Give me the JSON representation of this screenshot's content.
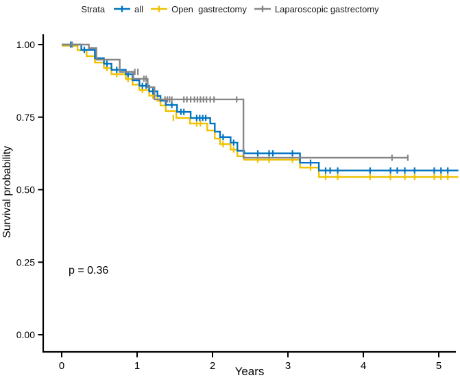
{
  "legend": {
    "title": "Strata",
    "items": [
      {
        "label": "all",
        "color": "#0073C2"
      },
      {
        "label": "Open  gastrectomy",
        "color": "#EFC000"
      },
      {
        "label": "Laparoscopic gastrectomy",
        "color": "#868686"
      }
    ]
  },
  "chart_data": {
    "type": "line",
    "subtype": "kaplan-meier-step",
    "title": "",
    "xlabel": "Years",
    "ylabel": "Survival probability",
    "annotation": "p = 0.36",
    "xlim": [
      0,
      5.3
    ],
    "ylim": [
      0,
      1
    ],
    "grid": false,
    "legend_position": "top",
    "axis_color": "#000000",
    "x_ticks": [
      {
        "value": 0,
        "label": "0"
      },
      {
        "value": 1,
        "label": "1"
      },
      {
        "value": 2,
        "label": "2"
      },
      {
        "value": 3,
        "label": "3"
      },
      {
        "value": 4,
        "label": "4"
      },
      {
        "value": 5,
        "label": "5"
      }
    ],
    "y_ticks": [
      {
        "value": 0.0,
        "label": "0.00"
      },
      {
        "value": 0.25,
        "label": "0.25"
      },
      {
        "value": 0.5,
        "label": "0.50"
      },
      {
        "value": 0.75,
        "label": "0.75"
      },
      {
        "value": 1.0,
        "label": "1.00"
      }
    ],
    "series": [
      {
        "name": "Open  gastrectomy",
        "color": "#EFC000",
        "steps": [
          [
            0,
            0.996
          ],
          [
            0.21,
            0.981
          ],
          [
            0.33,
            0.96
          ],
          [
            0.44,
            0.938
          ],
          [
            0.56,
            0.919
          ],
          [
            0.66,
            0.898
          ],
          [
            0.85,
            0.881
          ],
          [
            0.94,
            0.862
          ],
          [
            1.03,
            0.843
          ],
          [
            1.16,
            0.824
          ],
          [
            1.27,
            0.806
          ],
          [
            1.31,
            0.79
          ],
          [
            1.38,
            0.771
          ],
          [
            1.52,
            0.747
          ],
          [
            1.7,
            0.728
          ],
          [
            1.93,
            0.704
          ],
          [
            2.03,
            0.676
          ],
          [
            2.1,
            0.657
          ],
          [
            2.24,
            0.638
          ],
          [
            2.33,
            0.615
          ],
          [
            2.42,
            0.603
          ],
          [
            3.16,
            0.576
          ],
          [
            3.41,
            0.544
          ],
          [
            5.26,
            0.544
          ]
        ],
        "censors": [
          [
            0.6,
            0.919
          ],
          [
            0.73,
            0.898
          ],
          [
            0.88,
            0.881
          ],
          [
            1.07,
            0.843
          ],
          [
            1.21,
            0.824
          ],
          [
            1.48,
            0.747
          ],
          [
            1.79,
            0.728
          ],
          [
            1.84,
            0.728
          ],
          [
            2.14,
            0.657
          ],
          [
            2.28,
            0.638
          ],
          [
            2.6,
            0.603
          ],
          [
            2.75,
            0.603
          ],
          [
            3.06,
            0.603
          ],
          [
            3.3,
            0.576
          ],
          [
            3.5,
            0.544
          ],
          [
            3.66,
            0.544
          ],
          [
            4.09,
            0.544
          ],
          [
            4.36,
            0.544
          ],
          [
            4.55,
            0.544
          ],
          [
            4.68,
            0.544
          ],
          [
            4.94,
            0.544
          ],
          [
            5.03,
            0.544
          ],
          [
            5.12,
            0.544
          ]
        ]
      },
      {
        "name": "all",
        "color": "#0073C2",
        "steps": [
          [
            0,
            1.0
          ],
          [
            0.26,
            0.982
          ],
          [
            0.44,
            0.953
          ],
          [
            0.56,
            0.934
          ],
          [
            0.66,
            0.913
          ],
          [
            0.85,
            0.898
          ],
          [
            0.94,
            0.877
          ],
          [
            1.03,
            0.858
          ],
          [
            1.16,
            0.839
          ],
          [
            1.27,
            0.823
          ],
          [
            1.31,
            0.807
          ],
          [
            1.38,
            0.792
          ],
          [
            1.53,
            0.768
          ],
          [
            1.71,
            0.747
          ],
          [
            1.97,
            0.728
          ],
          [
            2.03,
            0.7
          ],
          [
            2.1,
            0.681
          ],
          [
            2.24,
            0.662
          ],
          [
            2.33,
            0.634
          ],
          [
            2.42,
            0.625
          ],
          [
            3.16,
            0.593
          ],
          [
            3.41,
            0.566
          ],
          [
            5.26,
            0.566
          ]
        ],
        "censors": [
          [
            0.12,
            1.0
          ],
          [
            0.3,
            0.982
          ],
          [
            0.6,
            0.934
          ],
          [
            0.73,
            0.913
          ],
          [
            0.88,
            0.898
          ],
          [
            1.07,
            0.858
          ],
          [
            1.12,
            0.858
          ],
          [
            1.21,
            0.839
          ],
          [
            1.46,
            0.792
          ],
          [
            1.58,
            0.768
          ],
          [
            1.62,
            0.768
          ],
          [
            1.79,
            0.747
          ],
          [
            1.83,
            0.747
          ],
          [
            1.87,
            0.747
          ],
          [
            1.91,
            0.747
          ],
          [
            2.14,
            0.681
          ],
          [
            2.28,
            0.662
          ],
          [
            2.6,
            0.625
          ],
          [
            2.75,
            0.625
          ],
          [
            2.8,
            0.625
          ],
          [
            3.06,
            0.625
          ],
          [
            3.3,
            0.593
          ],
          [
            3.5,
            0.566
          ],
          [
            3.56,
            0.566
          ],
          [
            3.66,
            0.566
          ],
          [
            4.09,
            0.566
          ],
          [
            4.36,
            0.566
          ],
          [
            4.45,
            0.566
          ],
          [
            4.55,
            0.566
          ],
          [
            4.68,
            0.566
          ],
          [
            4.94,
            0.566
          ],
          [
            5.03,
            0.566
          ],
          [
            5.12,
            0.566
          ]
        ]
      },
      {
        "name": "Laparoscopic gastrectomy",
        "color": "#868686",
        "steps": [
          [
            0,
            1.0
          ],
          [
            0.36,
            0.988
          ],
          [
            0.46,
            0.948
          ],
          [
            0.77,
            0.906
          ],
          [
            0.95,
            0.882
          ],
          [
            1.14,
            0.853
          ],
          [
            1.23,
            0.811
          ],
          [
            2.41,
            0.61
          ],
          [
            4.59,
            0.61
          ]
        ],
        "censors": [
          [
            0.14,
            1.0
          ],
          [
            0.97,
            0.906
          ],
          [
            1.01,
            0.906
          ],
          [
            1.09,
            0.882
          ],
          [
            1.12,
            0.882
          ],
          [
            1.37,
            0.811
          ],
          [
            1.4,
            0.811
          ],
          [
            1.43,
            0.811
          ],
          [
            1.46,
            0.811
          ],
          [
            1.62,
            0.811
          ],
          [
            1.66,
            0.811
          ],
          [
            1.71,
            0.811
          ],
          [
            1.76,
            0.811
          ],
          [
            1.8,
            0.811
          ],
          [
            1.84,
            0.811
          ],
          [
            1.88,
            0.811
          ],
          [
            1.92,
            0.811
          ],
          [
            1.97,
            0.811
          ],
          [
            2.02,
            0.811
          ],
          [
            2.32,
            0.811
          ],
          [
            4.38,
            0.61
          ],
          [
            4.59,
            0.61
          ]
        ]
      }
    ]
  }
}
